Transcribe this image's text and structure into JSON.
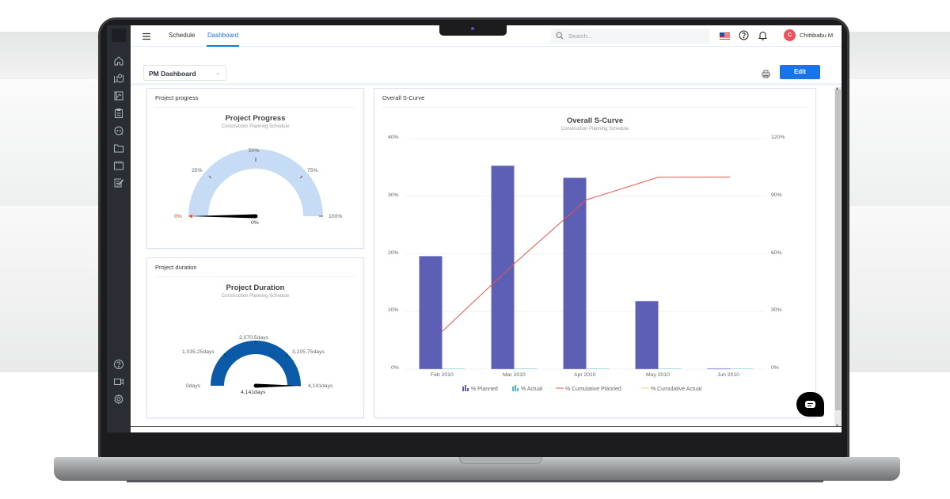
{
  "topnav": {
    "tabs": [
      {
        "label": "Schedule",
        "active": false
      },
      {
        "label": "Dashboard",
        "active": true
      }
    ],
    "search_placeholder": "Search...",
    "user": {
      "initial": "C",
      "name": "Chittibabu M"
    }
  },
  "sidebar": {
    "items": [
      "home-icon",
      "map-icon",
      "drawing-icon",
      "clipboard-icon",
      "chat-icon",
      "folder-icon",
      "calendar-icon",
      "edit-form-icon"
    ],
    "bottom_items": [
      "help-icon",
      "video-icon",
      "settings-icon"
    ]
  },
  "toolbar": {
    "dashboard_select": "PM Dashboard",
    "edit_label": "Edit"
  },
  "cards": {
    "progress": {
      "header": "Project progress",
      "title": "Project Progress",
      "subtitle": "Construction Planning Schedule",
      "ticks": [
        "0%",
        "25%",
        "50%",
        "75%",
        "100%"
      ],
      "value": "0%",
      "band_color": "#c6dcf5"
    },
    "duration": {
      "header": "Project duration",
      "title": "Project Duration",
      "subtitle": "Construction Planning Schedule",
      "ticks": [
        "0days",
        "1,035.25days",
        "2,070.5days",
        "3,105.75days",
        "4,141days"
      ],
      "value": "4,141days",
      "band_color": "#0a5aa8"
    },
    "scurve": {
      "header": "Overall S-Curve",
      "title": "Overall S-Curve",
      "subtitle": "Construction Planning Schedule"
    }
  },
  "chart_data": [
    {
      "type": "gauge",
      "title": "Project Progress",
      "subtitle": "Construction Planning Schedule",
      "range": [
        0,
        100
      ],
      "ticks": [
        "0%",
        "25%",
        "50%",
        "75%",
        "100%"
      ],
      "value": 0,
      "value_label": "0%"
    },
    {
      "type": "gauge",
      "title": "Project Duration",
      "subtitle": "Construction Planning Schedule",
      "range": [
        0,
        4141
      ],
      "ticks": [
        "0days",
        "1,035.25days",
        "2,070.5days",
        "3,105.75days",
        "4,141days"
      ],
      "value": 4141,
      "value_label": "4,141days"
    },
    {
      "type": "bar",
      "title": "Overall S-Curve",
      "subtitle": "Construction Planning Schedule",
      "categories": [
        "Feb 2010",
        "Mar 2010",
        "Apr 2010",
        "May 2010",
        "Jun 2010"
      ],
      "series": [
        {
          "name": "% Planned",
          "type": "bar",
          "axis": "left",
          "color": "#5c5fb3",
          "values": [
            19.6,
            35.3,
            33.2,
            11.8,
            0.1
          ]
        },
        {
          "name": "% Actual",
          "type": "bar",
          "axis": "left",
          "color": "#3fc1c0",
          "values": [
            0,
            0,
            0,
            0,
            0
          ]
        },
        {
          "name": "% Cumulative Planned",
          "type": "line",
          "axis": "right",
          "color": "#e8534a",
          "values": [
            19.6,
            54.9,
            88.1,
            99.9,
            100
          ]
        },
        {
          "name": "% Cumulative Actual",
          "type": "line",
          "axis": "right",
          "color": "#f2d16b",
          "values": [
            0,
            0,
            0,
            0,
            0
          ]
        }
      ],
      "left_axis": {
        "ticks": [
          "0%",
          "10%",
          "20%",
          "30%",
          "40%"
        ],
        "ylim": [
          0,
          40
        ]
      },
      "right_axis": {
        "ticks": [
          "0%",
          "30%",
          "60%",
          "90%",
          "120%"
        ],
        "ylim": [
          0,
          120
        ]
      },
      "grid": true,
      "legend_position": "bottom"
    }
  ]
}
